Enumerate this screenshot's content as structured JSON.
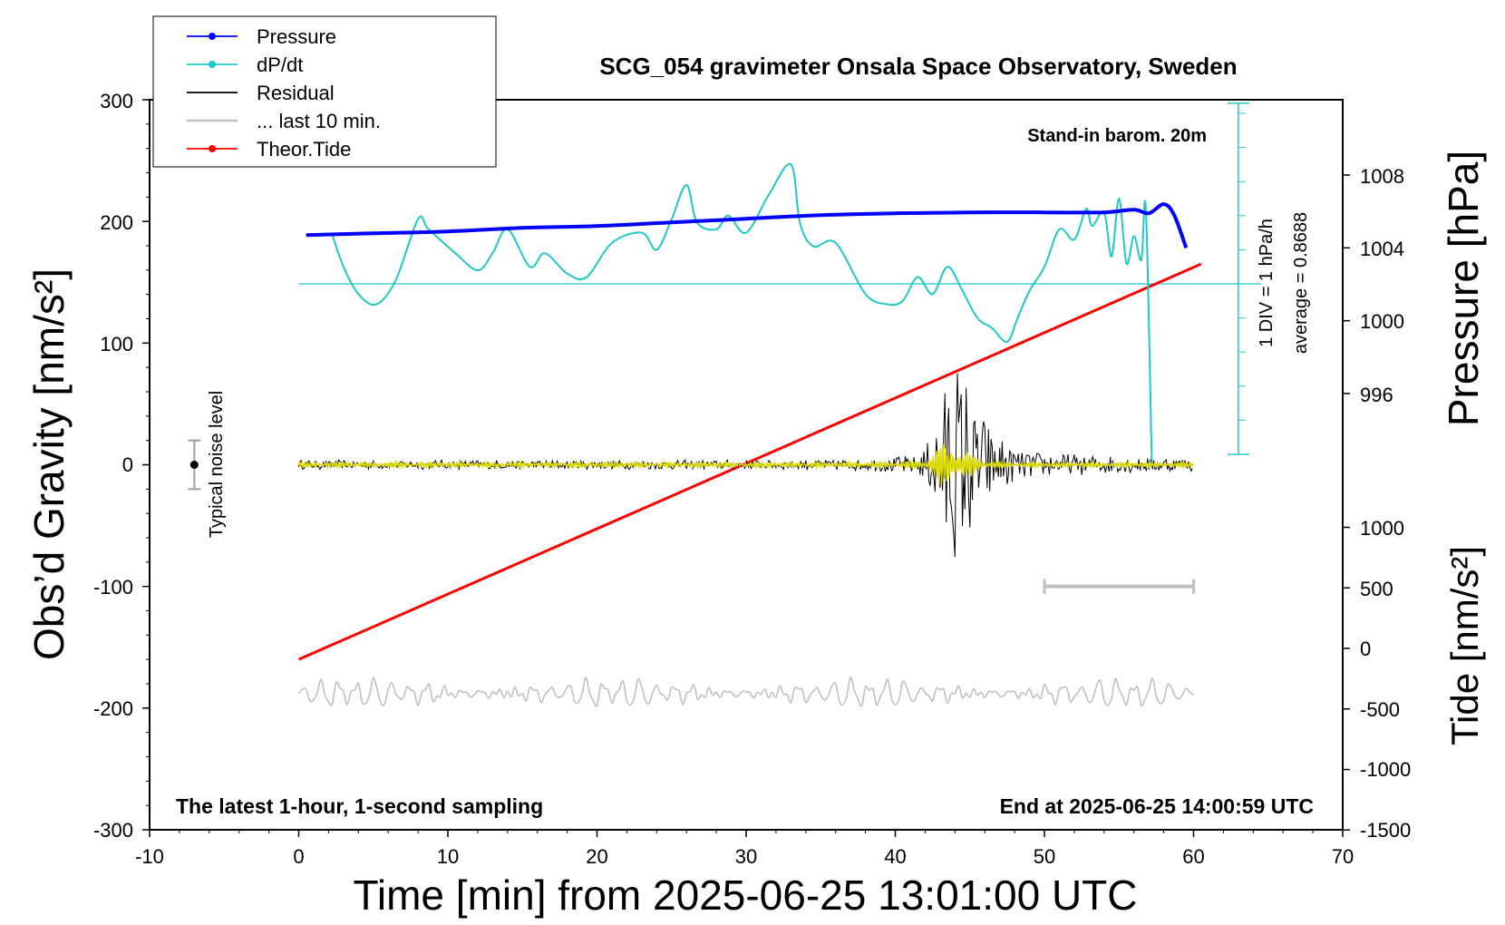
{
  "chart_data": {
    "type": "line",
    "title": "SCG_054 gravimeter Onsala Space Observatory, Sweden",
    "note_top_right": "Stand-in barom. 20m",
    "note_bottom_left": "The latest 1-hour, 1-second sampling",
    "note_bottom_right": "End at 2025-06-25 14:00:59 UTC",
    "xlabel": "Time [min] from 2025-06-25 13:01:00 UTC",
    "ylabel_left": "Obs’d Gravity [nm/s²]",
    "ylabel_pressure": "Pressure [hPa]",
    "ylabel_tide": "Tide [nm/s²]",
    "xlim": [
      -10,
      70
    ],
    "ylim_left": [
      -300,
      300
    ],
    "x_ticks": [
      "-10",
      "0",
      "10",
      "20",
      "30",
      "40",
      "50",
      "60",
      "70"
    ],
    "y_ticks_left": [
      "-300",
      "-200",
      "-100",
      "0",
      "100",
      "200",
      "300"
    ],
    "pressure_ticks": [
      "996",
      "1000",
      "1004",
      "1008"
    ],
    "tide_ticks": [
      "-1500",
      "-1000",
      "-500",
      "0",
      "500",
      "1000"
    ],
    "dpdt_scale_label": "1 DIV = 1 hPa/h",
    "dpdt_average_label": "average = 0.8688",
    "noise_label": "Typical noise level",
    "grid": false,
    "legend_position": "top-left",
    "legend": [
      {
        "label": "Pressure",
        "color": "#0000ff",
        "marker": true
      },
      {
        "label": "dP/dt",
        "color": "#20c8c8",
        "marker": true
      },
      {
        "label": "Residual",
        "color": "#000000",
        "marker": false
      },
      {
        "label": "... last 10 min.",
        "color": "#c0c0c0",
        "marker": false
      },
      {
        "label": "Theor.Tide",
        "color": "#ff0000",
        "marker": true
      }
    ],
    "series": [
      {
        "name": "Pressure",
        "color": "#0000ff",
        "unit": "hPa",
        "x": [
          0.5,
          5,
          10,
          15,
          20,
          25,
          30,
          35,
          40,
          45,
          50,
          54,
          56,
          57,
          58,
          58.7,
          59.5
        ],
        "y": [
          1004.7,
          1004.8,
          1004.9,
          1005.1,
          1005.2,
          1005.4,
          1005.6,
          1005.8,
          1005.9,
          1005.95,
          1005.95,
          1005.95,
          1006.1,
          1005.9,
          1006.4,
          1005.8,
          1004.0
        ]
      },
      {
        "name": "dP/dt",
        "color": "#20c8c8",
        "unit": "hPa/h",
        "x": [
          2.2,
          3,
          4,
          5.2,
          6.5,
          8,
          8.7,
          10.5,
          12,
          13,
          14,
          15.5,
          16.5,
          18,
          19.3,
          21,
          23,
          24,
          25,
          26,
          26.7,
          28,
          28.8,
          30,
          31.5,
          33,
          33.6,
          34.5,
          36,
          38,
          39.5,
          40.5,
          41.5,
          42.5,
          43.5,
          44.5,
          45.5,
          46.5,
          47.5,
          48.2,
          49,
          50,
          51,
          52,
          52.8,
          53.2,
          54,
          54.5,
          55,
          55.5,
          56,
          56.5,
          56.8,
          57.2
        ],
        "y": [
          1.5,
          0.5,
          -0.3,
          -0.6,
          0.1,
          1.9,
          1.6,
          0.9,
          0.4,
          0.9,
          1.6,
          0.5,
          0.9,
          0.3,
          0.2,
          1.2,
          1.5,
          1.0,
          1.9,
          2.9,
          1.8,
          1.6,
          2.0,
          1.5,
          2.6,
          3.5,
          1.8,
          1.1,
          1.2,
          -0.3,
          -0.6,
          -0.5,
          0.2,
          -0.3,
          0.5,
          -0.2,
          -1.0,
          -1.3,
          -1.7,
          -1.0,
          -0.2,
          0.5,
          1.6,
          1.3,
          2.2,
          1.7,
          2.1,
          0.8,
          2.5,
          0.6,
          1.4,
          0.7,
          2.2,
          -5.2
        ]
      },
      {
        "name": "Residual",
        "color": "#000000",
        "unit": "nm/s²",
        "x": [
          0,
          10,
          20,
          30,
          38,
          41,
          42,
          42.5,
          43,
          43.5,
          44,
          44.5,
          45,
          45.5,
          46,
          47,
          48,
          50,
          55,
          60
        ],
        "amplitude": [
          4,
          4,
          4,
          4,
          5,
          8,
          15,
          30,
          55,
          90,
          100,
          95,
          70,
          55,
          40,
          25,
          15,
          10,
          8,
          6
        ]
      },
      {
        "name": "Residual (filtered)",
        "color": "#d8d800",
        "unit": "nm/s²",
        "x": [
          0,
          40,
          42,
          43,
          44,
          45,
          46,
          48,
          60
        ],
        "amplitude": [
          2,
          2,
          4,
          18,
          16,
          10,
          3,
          2,
          2
        ]
      },
      {
        "name": "... last 10 min.",
        "color": "#c0c0c0",
        "unit": "nm/s²",
        "x": [
          0,
          60
        ],
        "y": [
          -188,
          -188
        ],
        "amplitude": 12
      },
      {
        "name": "Theor.Tide",
        "color": "#ff0000",
        "unit": "nm/s²",
        "x": [
          0,
          60.5
        ],
        "y": [
          -160,
          165
        ]
      }
    ],
    "scale_bar": {
      "x": [
        50,
        60
      ],
      "y": -100
    },
    "noise_bar": {
      "x": -7,
      "y": 0,
      "range": [
        -20,
        20
      ]
    }
  }
}
